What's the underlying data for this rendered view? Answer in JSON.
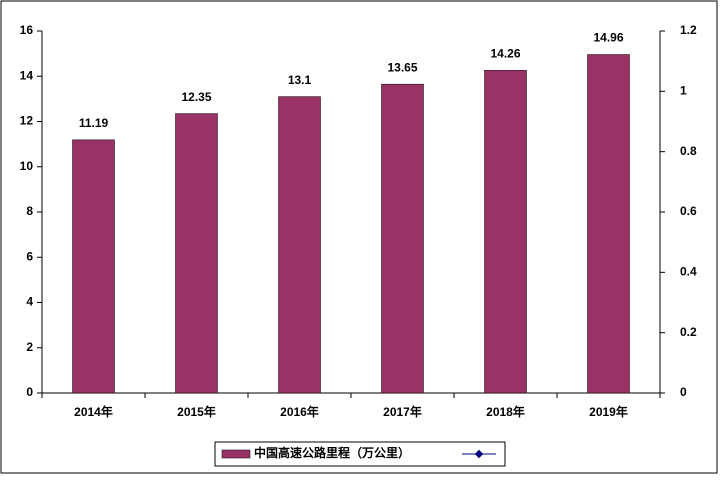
{
  "chart_data": {
    "type": "bar",
    "categories": [
      "2014年",
      "2015年",
      "2016年",
      "2017年",
      "2018年",
      "2019年"
    ],
    "series": [
      {
        "name": "中国高速公路里程（万公里）",
        "color": "#993366",
        "values": [
          11.19,
          12.35,
          13.1,
          13.65,
          14.26,
          14.96
        ]
      }
    ],
    "ylim": [
      0,
      16
    ],
    "yticks": [
      0,
      2,
      4,
      6,
      8,
      10,
      12,
      14,
      16
    ],
    "y2lim": [
      0,
      1.2
    ],
    "y2ticks": [
      0,
      0.2,
      0.4,
      0.6,
      0.8,
      1,
      1.2
    ],
    "grid": false,
    "legend": "bottom"
  }
}
